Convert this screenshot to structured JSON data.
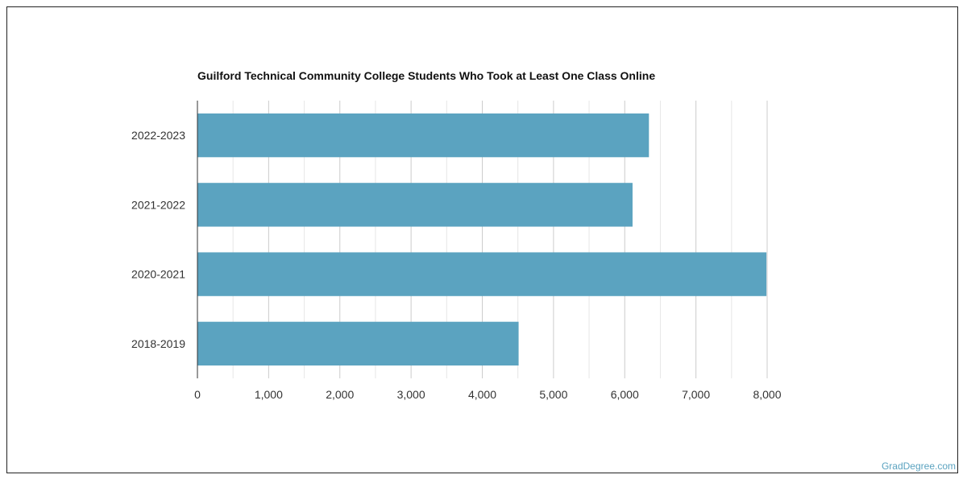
{
  "chart_data": {
    "type": "bar",
    "orientation": "horizontal",
    "title": "Guilford Technical Community College Students Who Took at Least One Class Online",
    "categories": [
      "2022-2023",
      "2021-2022",
      "2020-2021",
      "2018-2019"
    ],
    "values": [
      6340,
      6110,
      7990,
      4510
    ],
    "xlim": [
      0,
      8000
    ],
    "x_ticks": [
      0,
      1000,
      2000,
      3000,
      4000,
      5000,
      6000,
      7000,
      8000
    ],
    "x_tick_labels": [
      "0",
      "1,000",
      "2,000",
      "3,000",
      "4,000",
      "5,000",
      "6,000",
      "7,000",
      "8,000"
    ],
    "bar_color": "#5ba3c0",
    "grid": true,
    "legend": "none"
  },
  "credit": "GradDegree.com"
}
